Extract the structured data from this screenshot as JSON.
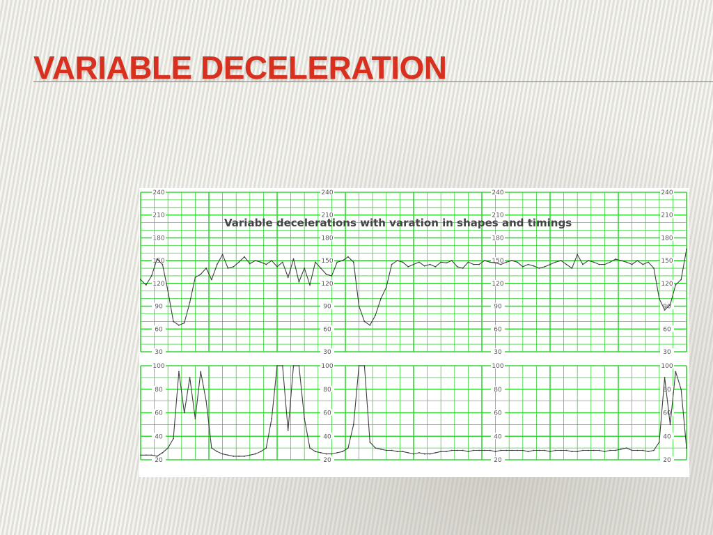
{
  "slide": {
    "title": "VARIABLE DECELERATION"
  },
  "colors": {
    "title": "#d8301f",
    "grid": "#34d634",
    "trace": "#3d3d3d",
    "rule": "#c8543a"
  },
  "chart_data": [
    {
      "type": "line",
      "name": "fetal-heart-rate",
      "annotation": "Variable decelerations with varation in shapes and timings",
      "xlabel": "",
      "ylabel": "",
      "ylim": [
        30,
        240
      ],
      "y_ticks": [
        "240",
        "210",
        "180",
        "150",
        "120",
        "90",
        "60",
        "30"
      ],
      "x": [
        0,
        1,
        2,
        3,
        4,
        5,
        6,
        7,
        8,
        9,
        10,
        11,
        12,
        13,
        14,
        15,
        16,
        17,
        18,
        19,
        20,
        21,
        22,
        23,
        24,
        25,
        26,
        27,
        28,
        29,
        30,
        31,
        32,
        33,
        34,
        35,
        36,
        37,
        38,
        39,
        40,
        41,
        42,
        43,
        44,
        45,
        46,
        47,
        48,
        49,
        50,
        51,
        52,
        53,
        54,
        55,
        56,
        57,
        58,
        59,
        60,
        61,
        62,
        63,
        64,
        65,
        66,
        67,
        68,
        69,
        70,
        71,
        72,
        73,
        74,
        75,
        76,
        77,
        78,
        79,
        80,
        81,
        82,
        83,
        84,
        85,
        86,
        87,
        88,
        89,
        90,
        91,
        92,
        93,
        94,
        95,
        96,
        97,
        98,
        99,
        100
      ],
      "y": [
        125,
        118,
        130,
        152,
        145,
        110,
        70,
        65,
        68,
        95,
        128,
        132,
        140,
        125,
        145,
        158,
        140,
        142,
        148,
        155,
        146,
        150,
        148,
        145,
        150,
        142,
        148,
        128,
        152,
        122,
        140,
        118,
        148,
        140,
        132,
        130,
        148,
        150,
        155,
        148,
        90,
        70,
        65,
        78,
        100,
        115,
        145,
        150,
        148,
        142,
        145,
        148,
        143,
        145,
        142,
        148,
        147,
        150,
        142,
        140,
        148,
        145,
        145,
        150,
        148,
        147,
        145,
        148,
        150,
        148,
        142,
        145,
        143,
        140,
        142,
        145,
        148,
        150,
        145,
        140,
        158,
        145,
        150,
        148,
        145,
        145,
        148,
        152,
        150,
        148,
        145,
        150,
        145,
        148,
        140,
        100,
        85,
        92,
        118,
        125,
        165
      ]
    },
    {
      "type": "line",
      "name": "uterine-contractions",
      "xlabel": "",
      "ylabel": "",
      "ylim": [
        20,
        100
      ],
      "y_ticks": [
        "100",
        "80",
        "60",
        "40",
        "20"
      ],
      "x": [
        0,
        1,
        2,
        3,
        4,
        5,
        6,
        7,
        8,
        9,
        10,
        11,
        12,
        13,
        14,
        15,
        16,
        17,
        18,
        19,
        20,
        21,
        22,
        23,
        24,
        25,
        26,
        27,
        28,
        29,
        30,
        31,
        32,
        33,
        34,
        35,
        36,
        37,
        38,
        39,
        40,
        41,
        42,
        43,
        44,
        45,
        46,
        47,
        48,
        49,
        50,
        51,
        52,
        53,
        54,
        55,
        56,
        57,
        58,
        59,
        60,
        61,
        62,
        63,
        64,
        65,
        66,
        67,
        68,
        69,
        70,
        71,
        72,
        73,
        74,
        75,
        76,
        77,
        78,
        79,
        80,
        81,
        82,
        83,
        84,
        85,
        86,
        87,
        88,
        89,
        90,
        91,
        92,
        93,
        94,
        95,
        96,
        97,
        98,
        99,
        100
      ],
      "y": [
        24,
        24,
        24,
        23,
        26,
        30,
        38,
        95,
        60,
        90,
        55,
        95,
        70,
        30,
        27,
        25,
        24,
        23,
        23,
        23,
        24,
        25,
        27,
        30,
        55,
        100,
        100,
        45,
        100,
        100,
        55,
        30,
        27,
        26,
        25,
        25,
        26,
        27,
        30,
        50,
        100,
        100,
        35,
        30,
        29,
        28,
        28,
        27,
        27,
        26,
        25,
        26,
        25,
        25,
        26,
        27,
        27,
        28,
        28,
        28,
        27,
        28,
        28,
        28,
        28,
        27,
        28,
        28,
        28,
        28,
        28,
        27,
        28,
        28,
        28,
        27,
        28,
        28,
        28,
        27,
        27,
        28,
        28,
        28,
        28,
        27,
        28,
        28,
        29,
        30,
        28,
        28,
        28,
        27,
        28,
        35,
        90,
        50,
        95,
        80,
        30
      ]
    }
  ]
}
